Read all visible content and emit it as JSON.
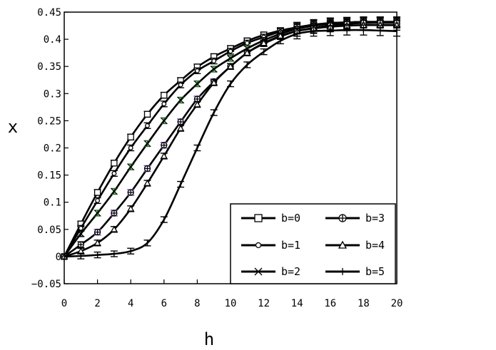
{
  "chart_data": {
    "type": "line",
    "title": "",
    "xlabel": "h",
    "ylabel": "x",
    "xlim": [
      0,
      20
    ],
    "ylim": [
      -0.05,
      0.45
    ],
    "xticks": [
      "0",
      "2",
      "4",
      "6",
      "8",
      "10",
      "12",
      "14",
      "16",
      "18",
      "20"
    ],
    "yticks": [
      "−0.05",
      "0",
      "0.05",
      "0.1",
      "0.15",
      "0.2",
      "0.25",
      "0.3",
      "0.35",
      "0.4",
      "0.45"
    ],
    "grid": false,
    "legend": {
      "placement": "bottom-right",
      "columns": 2
    },
    "x": [
      0,
      1,
      2,
      3,
      4,
      5,
      6,
      7,
      8,
      9,
      10,
      11,
      12,
      13,
      14,
      15,
      16,
      17,
      18,
      19,
      20
    ],
    "series": [
      {
        "name": "b=0",
        "marker": "square",
        "values": [
          0,
          0.06,
          0.118,
          0.172,
          0.22,
          0.262,
          0.297,
          0.324,
          0.349,
          0.368,
          0.383,
          0.397,
          0.408,
          0.416,
          0.422,
          0.427,
          0.43,
          0.431,
          0.432,
          0.432,
          0.432
        ]
      },
      {
        "name": "b=1",
        "marker": "circle",
        "values": [
          0,
          0.052,
          0.103,
          0.153,
          0.2,
          0.241,
          0.281,
          0.316,
          0.342,
          0.36,
          0.378,
          0.393,
          0.404,
          0.414,
          0.421,
          0.426,
          0.43,
          0.431,
          0.432,
          0.432,
          0.432
        ]
      },
      {
        "name": "b=2",
        "marker": "x",
        "values": [
          0,
          0.042,
          0.08,
          0.12,
          0.165,
          0.208,
          0.25,
          0.288,
          0.318,
          0.345,
          0.365,
          0.383,
          0.398,
          0.41,
          0.419,
          0.425,
          0.428,
          0.43,
          0.431,
          0.431,
          0.431
        ]
      },
      {
        "name": "b=3",
        "marker": "circle-plus",
        "values": [
          0,
          0.022,
          0.045,
          0.08,
          0.118,
          0.162,
          0.205,
          0.248,
          0.29,
          0.322,
          0.35,
          0.375,
          0.392,
          0.405,
          0.415,
          0.421,
          0.425,
          0.428,
          0.43,
          0.43,
          0.43
        ]
      },
      {
        "name": "b=4",
        "marker": "triangle",
        "values": [
          0,
          0.01,
          0.025,
          0.05,
          0.088,
          0.135,
          0.185,
          0.236,
          0.28,
          0.32,
          0.35,
          0.375,
          0.393,
          0.406,
          0.415,
          0.42,
          0.423,
          0.425,
          0.426,
          0.426,
          0.426
        ]
      },
      {
        "name": "b=5",
        "marker": "tick",
        "values": [
          0,
          0.001,
          0.003,
          0.005,
          0.01,
          0.025,
          0.068,
          0.133,
          0.2,
          0.265,
          0.318,
          0.353,
          0.377,
          0.397,
          0.41,
          0.415,
          0.416,
          0.417,
          0.417,
          0.416,
          0.415
        ]
      }
    ],
    "colors": {
      "line": "#000000",
      "errorbar_accent_1": "#7b3fbf",
      "errorbar_accent_2": "#1a6a1a"
    }
  }
}
